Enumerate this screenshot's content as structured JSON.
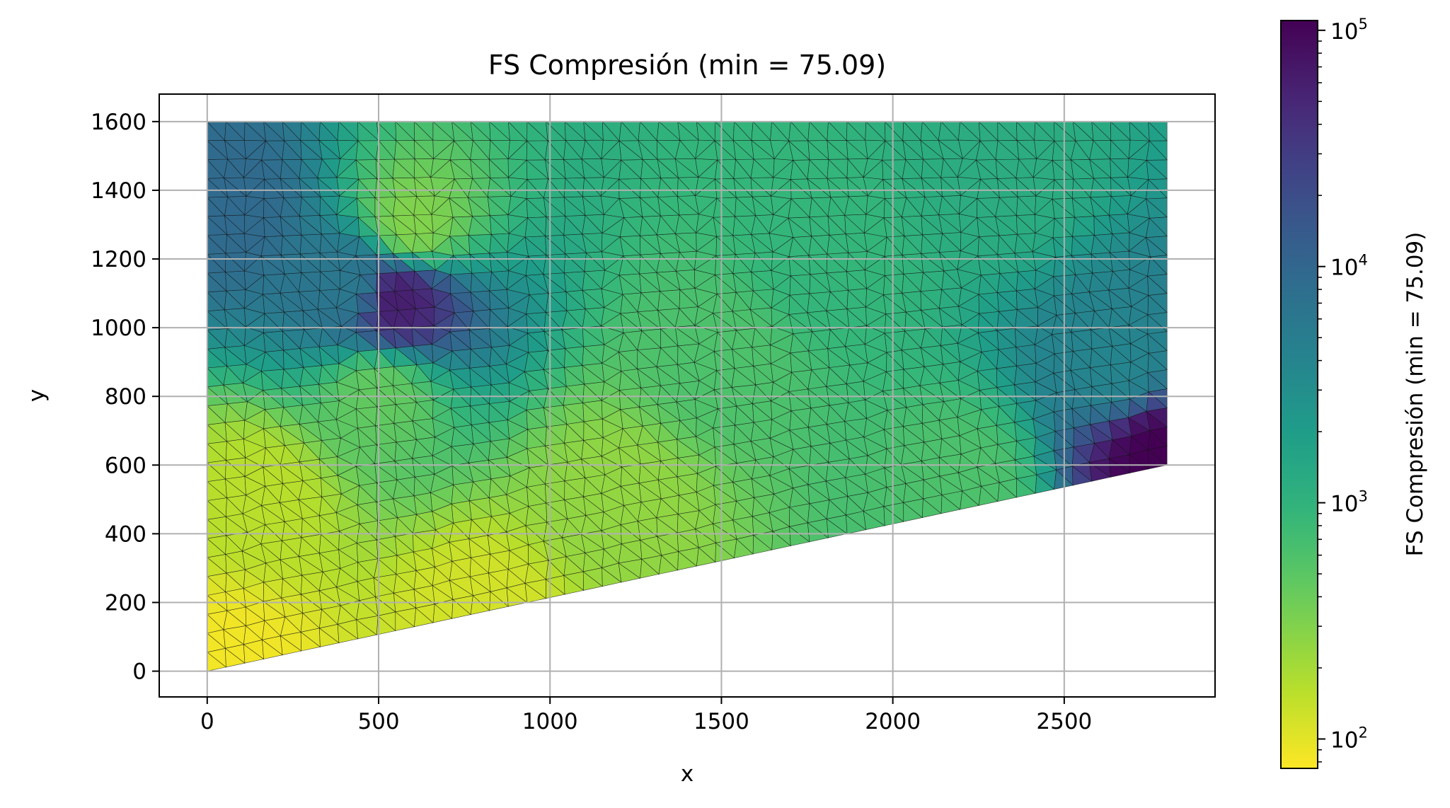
{
  "chart_data": {
    "type": "heatmap",
    "title": "FS Compresión (min = 75.09)",
    "xlabel": "x",
    "ylabel": "y",
    "xlim": [
      -140,
      2940
    ],
    "ylim": [
      -75,
      1680
    ],
    "xticks": [
      0,
      500,
      1000,
      1500,
      2000,
      2500
    ],
    "yticks": [
      0,
      200,
      400,
      600,
      800,
      1000,
      1200,
      1400,
      1600
    ],
    "grid": true,
    "domain_polygon": [
      [
        0,
        0
      ],
      [
        2800,
        600
      ],
      [
        2800,
        1600
      ],
      [
        0,
        1600
      ]
    ],
    "mesh": "triangular, approx. 55 mm elements",
    "field": {
      "name": "FS Compresión",
      "scale": "log",
      "min": 75.09,
      "max": 110000,
      "description_points": [
        {
          "x": 60,
          "y": 20,
          "value": 85
        },
        {
          "x": 800,
          "y": 150,
          "value": 120
        },
        {
          "x": 150,
          "y": 500,
          "value": 160
        },
        {
          "x": 1200,
          "y": 500,
          "value": 250
        },
        {
          "x": 2200,
          "y": 550,
          "value": 600
        },
        {
          "x": 500,
          "y": 800,
          "value": 450
        },
        {
          "x": 1500,
          "y": 900,
          "value": 600
        },
        {
          "x": 1800,
          "y": 1200,
          "value": 900
        },
        {
          "x": 2300,
          "y": 1450,
          "value": 1200
        },
        {
          "x": 2650,
          "y": 900,
          "value": 4000
        },
        {
          "x": 2780,
          "y": 620,
          "value": 110000
        },
        {
          "x": 60,
          "y": 1350,
          "value": 9000
        },
        {
          "x": 420,
          "y": 1120,
          "value": 6000
        },
        {
          "x": 550,
          "y": 1080,
          "value": 60000
        },
        {
          "x": 600,
          "y": 1300,
          "value": 300
        }
      ]
    },
    "colorbar": {
      "label": "FS Compresión (min = 75.09)",
      "colormap": "viridis_r",
      "range": [
        75.09,
        110000
      ],
      "major_ticks": [
        {
          "value": 100,
          "base": "10",
          "exp": "2"
        },
        {
          "value": 1000,
          "base": "10",
          "exp": "3"
        },
        {
          "value": 10000,
          "base": "10",
          "exp": "4"
        },
        {
          "value": 100000,
          "base": "10",
          "exp": "5"
        }
      ]
    }
  }
}
